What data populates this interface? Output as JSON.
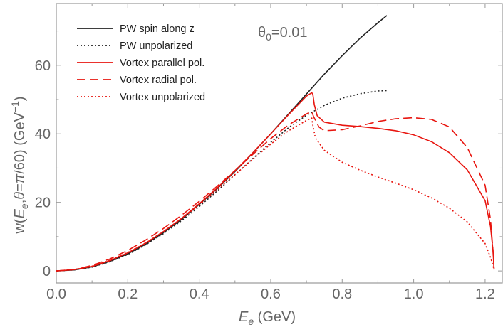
{
  "chart_data": {
    "type": "line",
    "xlabel_symbol": "E",
    "xlabel_sub": "e",
    "xlabel_unit": " (GeV)",
    "ylabel_prefix": "w(",
    "ylabel_sym1": "E",
    "ylabel_sub1": "e",
    "ylabel_mid": ",",
    "ylabel_sym2": "θ",
    "ylabel_eq": "=",
    "ylabel_pi": "π",
    "ylabel_suffix": "/60) (GeV",
    "ylabel_exp": "−1",
    "ylabel_close": ")",
    "annotation_base": "θ",
    "annotation_sub": "0",
    "annotation_rest": "=0.01",
    "xlim": [
      0.0,
      1.25
    ],
    "ylim": [
      -3.5,
      78
    ],
    "x_ticks": [
      0.0,
      0.2,
      0.4,
      0.6,
      0.8,
      1.0,
      1.2
    ],
    "x_tick_labels": [
      "0.0",
      "0.2",
      "0.4",
      "0.6",
      "0.8",
      "1.0",
      "1.2"
    ],
    "y_ticks": [
      0,
      20,
      40,
      60
    ],
    "y_tick_labels": [
      "0",
      "20",
      "40",
      "60"
    ],
    "legend_position": "top-left",
    "series": [
      {
        "name": "PW spin along z",
        "color": "#222222",
        "dash": "solid",
        "points": [
          [
            0.0,
            0
          ],
          [
            0.05,
            0.3
          ],
          [
            0.1,
            1.2
          ],
          [
            0.15,
            2.8
          ],
          [
            0.2,
            5.0
          ],
          [
            0.25,
            7.8
          ],
          [
            0.3,
            11.2
          ],
          [
            0.35,
            15.0
          ],
          [
            0.4,
            19.4
          ],
          [
            0.45,
            24.0
          ],
          [
            0.5,
            29.0
          ],
          [
            0.55,
            34.4
          ],
          [
            0.6,
            40.0
          ],
          [
            0.65,
            45.8
          ],
          [
            0.7,
            51.6
          ],
          [
            0.75,
            57.4
          ],
          [
            0.8,
            62.8
          ],
          [
            0.85,
            67.9
          ],
          [
            0.9,
            72.4
          ],
          [
            0.925,
            74.5
          ]
        ]
      },
      {
        "name": "PW unpolarized",
        "color": "#222222",
        "dash": "dotted",
        "points": [
          [
            0.0,
            0
          ],
          [
            0.05,
            0.3
          ],
          [
            0.1,
            1.1
          ],
          [
            0.15,
            2.7
          ],
          [
            0.2,
            4.8
          ],
          [
            0.25,
            7.6
          ],
          [
            0.3,
            10.9
          ],
          [
            0.35,
            14.6
          ],
          [
            0.4,
            18.8
          ],
          [
            0.45,
            23.3
          ],
          [
            0.5,
            28.0
          ],
          [
            0.55,
            32.8
          ],
          [
            0.6,
            37.5
          ],
          [
            0.65,
            41.8
          ],
          [
            0.7,
            45.4
          ],
          [
            0.75,
            48.3
          ],
          [
            0.8,
            50.4
          ],
          [
            0.85,
            51.7
          ],
          [
            0.9,
            52.5
          ],
          [
            0.925,
            52.6
          ]
        ]
      },
      {
        "name": "Vortex parallel pol.",
        "color": "#e8150f",
        "dash": "solid",
        "points": [
          [
            0.0,
            0
          ],
          [
            0.05,
            0.4
          ],
          [
            0.1,
            1.3
          ],
          [
            0.15,
            3.0
          ],
          [
            0.2,
            5.3
          ],
          [
            0.25,
            8.1
          ],
          [
            0.3,
            11.5
          ],
          [
            0.35,
            15.3
          ],
          [
            0.4,
            19.6
          ],
          [
            0.45,
            24.2
          ],
          [
            0.5,
            29.2
          ],
          [
            0.55,
            34.5
          ],
          [
            0.6,
            40.0
          ],
          [
            0.65,
            45.6
          ],
          [
            0.7,
            51.0
          ],
          [
            0.715,
            52.0
          ],
          [
            0.718,
            51.5
          ],
          [
            0.722,
            48.5
          ],
          [
            0.73,
            45.3
          ],
          [
            0.75,
            43.4
          ],
          [
            0.8,
            42.5
          ],
          [
            0.85,
            42.1
          ],
          [
            0.9,
            41.6
          ],
          [
            0.95,
            40.9
          ],
          [
            1.0,
            39.7
          ],
          [
            1.05,
            37.7
          ],
          [
            1.1,
            34.5
          ],
          [
            1.15,
            29.5
          ],
          [
            1.2,
            20.5
          ],
          [
            1.215,
            13.0
          ],
          [
            1.222,
            6.0
          ],
          [
            1.225,
            0.5
          ]
        ]
      },
      {
        "name": "Vortex radial pol.",
        "color": "#e8150f",
        "dash": "dashed",
        "points": [
          [
            0.0,
            0
          ],
          [
            0.05,
            0.4
          ],
          [
            0.1,
            1.6
          ],
          [
            0.15,
            3.5
          ],
          [
            0.2,
            6.0
          ],
          [
            0.25,
            9.0
          ],
          [
            0.3,
            12.4
          ],
          [
            0.35,
            16.2
          ],
          [
            0.4,
            20.3
          ],
          [
            0.45,
            24.7
          ],
          [
            0.5,
            29.3
          ],
          [
            0.55,
            34.0
          ],
          [
            0.6,
            38.6
          ],
          [
            0.65,
            42.6
          ],
          [
            0.7,
            45.8
          ],
          [
            0.715,
            46.5
          ],
          [
            0.72,
            45.0
          ],
          [
            0.735,
            42.0
          ],
          [
            0.75,
            40.9
          ],
          [
            0.8,
            41.2
          ],
          [
            0.85,
            42.3
          ],
          [
            0.9,
            43.6
          ],
          [
            0.95,
            44.4
          ],
          [
            1.0,
            44.7
          ],
          [
            1.05,
            44.2
          ],
          [
            1.1,
            42.0
          ],
          [
            1.15,
            36.0
          ],
          [
            1.2,
            25.0
          ],
          [
            1.215,
            15.0
          ],
          [
            1.222,
            6.0
          ],
          [
            1.225,
            0.5
          ]
        ]
      },
      {
        "name": "Vortex unpolarized",
        "color": "#e8150f",
        "dash": "dotted",
        "points": [
          [
            0.0,
            0
          ],
          [
            0.05,
            0.4
          ],
          [
            0.1,
            1.4
          ],
          [
            0.15,
            3.1
          ],
          [
            0.2,
            5.4
          ],
          [
            0.25,
            8.2
          ],
          [
            0.3,
            11.5
          ],
          [
            0.35,
            15.2
          ],
          [
            0.4,
            19.3
          ],
          [
            0.45,
            23.6
          ],
          [
            0.5,
            28.1
          ],
          [
            0.55,
            32.6
          ],
          [
            0.6,
            37.0
          ],
          [
            0.65,
            40.9
          ],
          [
            0.7,
            43.9
          ],
          [
            0.715,
            44.6
          ],
          [
            0.718,
            42.5
          ],
          [
            0.725,
            38.8
          ],
          [
            0.75,
            35.2
          ],
          [
            0.8,
            31.7
          ],
          [
            0.85,
            29.4
          ],
          [
            0.9,
            27.4
          ],
          [
            0.95,
            25.6
          ],
          [
            1.0,
            23.7
          ],
          [
            1.05,
            21.3
          ],
          [
            1.1,
            18.3
          ],
          [
            1.15,
            14.3
          ],
          [
            1.2,
            8.0
          ],
          [
            1.215,
            4.0
          ],
          [
            1.222,
            1.5
          ],
          [
            1.225,
            0.3
          ]
        ]
      }
    ]
  }
}
